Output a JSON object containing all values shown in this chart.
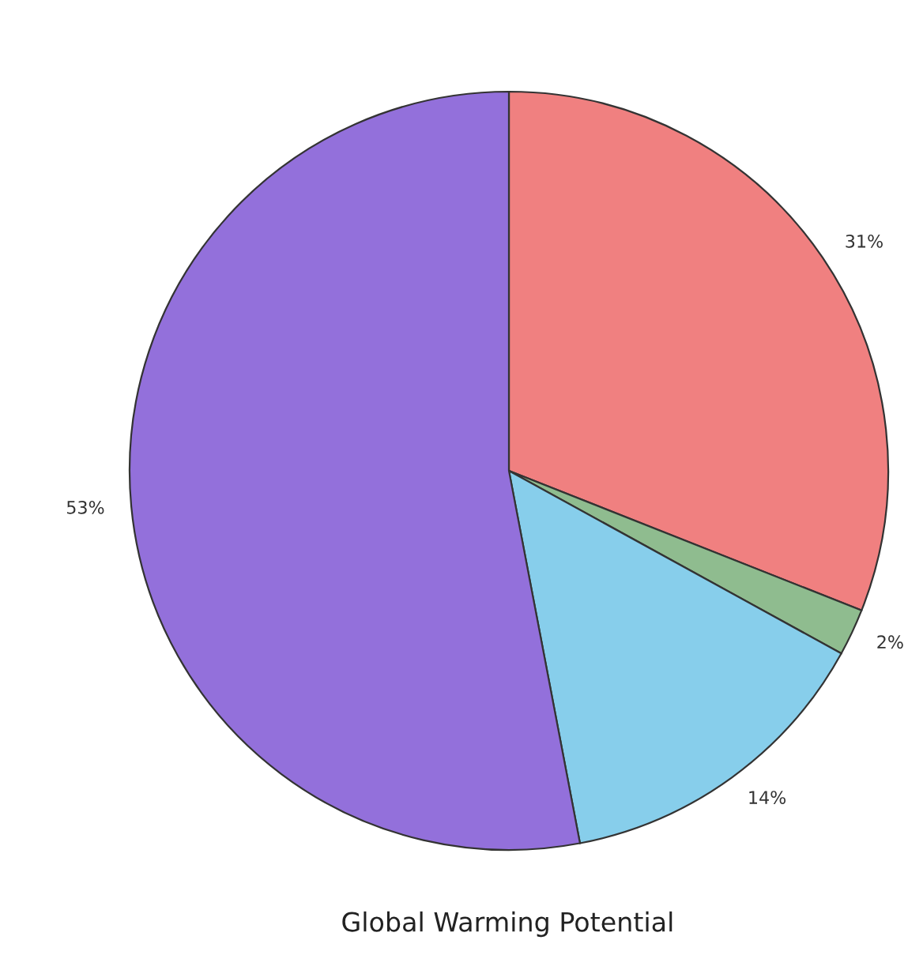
{
  "chart_data": {
    "type": "pie",
    "title": "Global Warming Potential",
    "categories": [
      null,
      null,
      null,
      null
    ],
    "values": [
      31,
      2,
      14,
      53
    ],
    "colors": [
      "#f08080",
      "#8fbc8f",
      "#87ceeb",
      "#9370db"
    ],
    "value_labels": [
      "31%",
      "2%",
      "14%",
      "53%"
    ],
    "legend": false
  }
}
